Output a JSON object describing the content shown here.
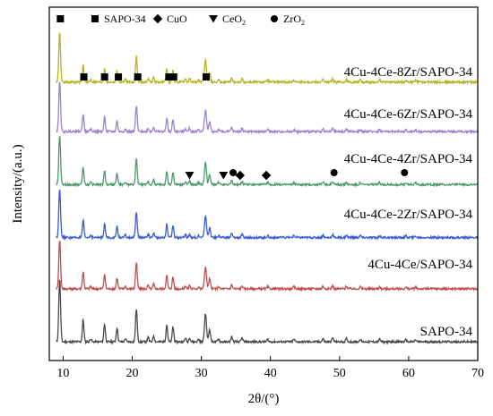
{
  "chart_data": {
    "type": "line",
    "xlabel": "2θ/(°)",
    "ylabel": "Intensity/(a.u.)",
    "xlim": [
      8,
      70
    ],
    "xticks": [
      "10",
      "20",
      "30",
      "40",
      "50",
      "60",
      "70"
    ],
    "grid": false,
    "legend": {
      "placement": "top",
      "entries": [
        {
          "symbol": "square",
          "label": "SAPO-34"
        },
        {
          "symbol": "diamond",
          "label": "CuO"
        },
        {
          "symbol": "triangle-down",
          "label": "CeO",
          "subscript": "2"
        },
        {
          "symbol": "circle",
          "label": "ZrO",
          "subscript": "2"
        }
      ]
    },
    "series": [
      {
        "name": "SAPO-34",
        "color": "#4a4a4a",
        "baseline": 0.05,
        "scale": 0.9
      },
      {
        "name": "4Cu-4Ce/SAPO-34",
        "color": "#c0504d",
        "baseline": 0.2,
        "scale": 0.7
      },
      {
        "name": "4Cu-4Ce-2Zr/SAPO-34",
        "color": "#3b5bd6",
        "baseline": 0.345,
        "scale": 0.7
      },
      {
        "name": "4Cu-4Ce-4Zr/SAPO-34",
        "color": "#4e9a6a",
        "baseline": 0.495,
        "scale": 0.7
      },
      {
        "name": "4Cu-4Ce-6Zr/SAPO-34",
        "color": "#9b82cf",
        "baseline": 0.645,
        "scale": 0.7
      },
      {
        "name": "4Cu-4Ce-8Zr/SAPO-34",
        "color": "#b5b324",
        "baseline": 0.785,
        "scale": 0.7
      }
    ],
    "peaks_2theta": [
      {
        "x": 9.5,
        "h": 1.0,
        "w": 0.18
      },
      {
        "x": 12.9,
        "h": 0.35,
        "w": 0.16
      },
      {
        "x": 14.0,
        "h": 0.05,
        "w": 0.15
      },
      {
        "x": 16.0,
        "h": 0.28,
        "w": 0.16
      },
      {
        "x": 17.8,
        "h": 0.22,
        "w": 0.16
      },
      {
        "x": 19.0,
        "h": 0.05,
        "w": 0.15
      },
      {
        "x": 20.6,
        "h": 0.52,
        "w": 0.17
      },
      {
        "x": 22.3,
        "h": 0.07,
        "w": 0.15
      },
      {
        "x": 23.1,
        "h": 0.1,
        "w": 0.15
      },
      {
        "x": 25.0,
        "h": 0.27,
        "w": 0.16
      },
      {
        "x": 25.9,
        "h": 0.24,
        "w": 0.16
      },
      {
        "x": 27.7,
        "h": 0.06,
        "w": 0.15
      },
      {
        "x": 28.3,
        "h": 0.07,
        "w": 0.15
      },
      {
        "x": 29.6,
        "h": 0.04,
        "w": 0.15
      },
      {
        "x": 30.6,
        "h": 0.45,
        "w": 0.2
      },
      {
        "x": 31.2,
        "h": 0.2,
        "w": 0.18
      },
      {
        "x": 32.5,
        "h": 0.05,
        "w": 0.15
      },
      {
        "x": 34.4,
        "h": 0.08,
        "w": 0.16
      },
      {
        "x": 35.9,
        "h": 0.06,
        "w": 0.16
      },
      {
        "x": 39.6,
        "h": 0.04,
        "w": 0.16
      },
      {
        "x": 43.4,
        "h": 0.04,
        "w": 0.16
      },
      {
        "x": 47.6,
        "h": 0.05,
        "w": 0.16
      },
      {
        "x": 49.0,
        "h": 0.06,
        "w": 0.16
      },
      {
        "x": 51.0,
        "h": 0.05,
        "w": 0.16
      },
      {
        "x": 53.0,
        "h": 0.04,
        "w": 0.16
      },
      {
        "x": 55.8,
        "h": 0.04,
        "w": 0.16
      },
      {
        "x": 59.6,
        "h": 0.03,
        "w": 0.16
      },
      {
        "x": 61.0,
        "h": 0.03,
        "w": 0.16
      }
    ],
    "markers": [
      {
        "series": "4Cu-4Ce-8Zr/SAPO-34",
        "symbol": "square",
        "x": [
          13.0,
          16.0,
          18.0,
          20.8,
          25.3,
          26.0,
          30.7
        ]
      },
      {
        "series": "4Cu-4Ce-4Zr/SAPO-34",
        "symbol": "triangle-down",
        "x": [
          28.3,
          33.2
        ]
      },
      {
        "series": "4Cu-4Ce-4Zr/SAPO-34",
        "symbol": "circle",
        "x": [
          34.6,
          49.2,
          59.4
        ]
      },
      {
        "series": "4Cu-4Ce-4Zr/SAPO-34",
        "symbol": "diamond",
        "x": [
          35.6,
          39.4
        ]
      }
    ]
  }
}
